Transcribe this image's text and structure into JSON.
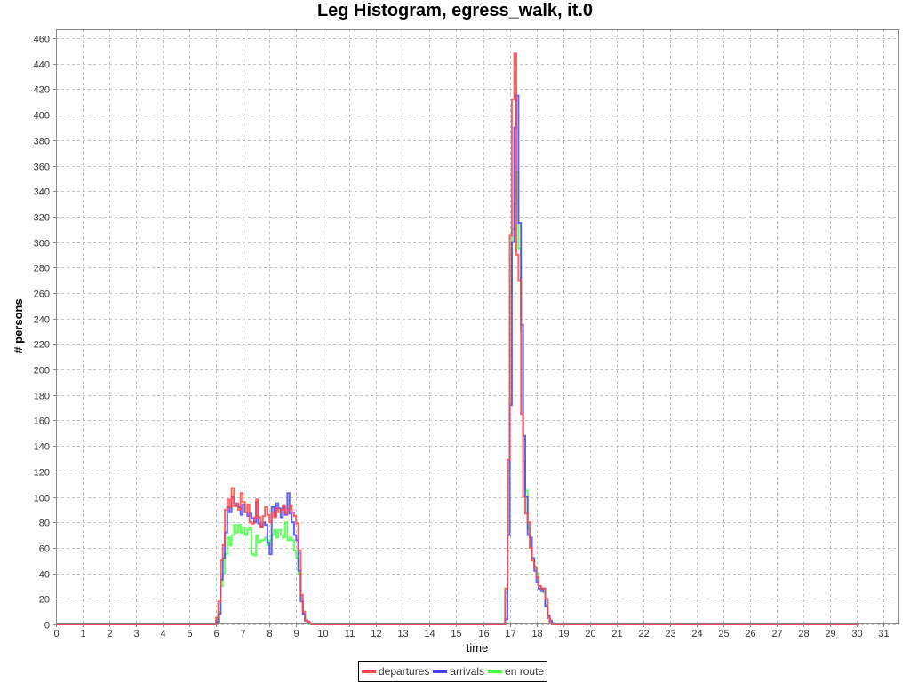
{
  "chart_data": {
    "type": "line",
    "title": "Leg Histogram, egress_walk, it.0",
    "xlabel": "time",
    "ylabel": "# persons",
    "xlim": [
      0,
      31.6
    ],
    "ylim": [
      0,
      467
    ],
    "x_ticks": [
      0,
      1,
      2,
      3,
      4,
      5,
      6,
      7,
      8,
      9,
      10,
      11,
      12,
      13,
      14,
      15,
      16,
      17,
      18,
      19,
      20,
      21,
      22,
      23,
      24,
      25,
      26,
      27,
      28,
      29,
      30,
      31
    ],
    "y_ticks": [
      0,
      20,
      40,
      60,
      80,
      100,
      120,
      140,
      160,
      180,
      200,
      220,
      240,
      260,
      280,
      300,
      320,
      340,
      360,
      380,
      400,
      420,
      440,
      460
    ],
    "grid": true,
    "legend_position": "bottom",
    "bin_width_hours": 0.0833,
    "series": [
      {
        "name": "departures",
        "color": "#ff4444",
        "points": [
          [
            0,
            0
          ],
          [
            6.0,
            0
          ],
          [
            6.0,
            5
          ],
          [
            6.08,
            18
          ],
          [
            6.17,
            50
          ],
          [
            6.25,
            62
          ],
          [
            6.33,
            90
          ],
          [
            6.42,
            98
          ],
          [
            6.5,
            92
          ],
          [
            6.58,
            107
          ],
          [
            6.67,
            93
          ],
          [
            6.75,
            95
          ],
          [
            6.83,
            90
          ],
          [
            6.92,
            103
          ],
          [
            7.0,
            96
          ],
          [
            7.08,
            88
          ],
          [
            7.17,
            94
          ],
          [
            7.25,
            80
          ],
          [
            7.33,
            79
          ],
          [
            7.42,
            84
          ],
          [
            7.5,
            98
          ],
          [
            7.58,
            84
          ],
          [
            7.67,
            76
          ],
          [
            7.75,
            85
          ],
          [
            7.83,
            92
          ],
          [
            7.92,
            86
          ],
          [
            8.0,
            80
          ],
          [
            8.08,
            88
          ],
          [
            8.17,
            84
          ],
          [
            8.25,
            91
          ],
          [
            8.33,
            88
          ],
          [
            8.42,
            90
          ],
          [
            8.5,
            93
          ],
          [
            8.58,
            87
          ],
          [
            8.67,
            90
          ],
          [
            8.75,
            93
          ],
          [
            8.83,
            88
          ],
          [
            8.92,
            85
          ],
          [
            9.0,
            79
          ],
          [
            9.08,
            58
          ],
          [
            9.17,
            23
          ],
          [
            9.25,
            10
          ],
          [
            9.33,
            3
          ],
          [
            9.42,
            2
          ],
          [
            9.5,
            1
          ],
          [
            9.58,
            0
          ],
          [
            16.83,
            0
          ],
          [
            16.83,
            28
          ],
          [
            16.92,
            129
          ],
          [
            17.0,
            305
          ],
          [
            17.08,
            412
          ],
          [
            17.17,
            448
          ],
          [
            17.25,
            290
          ],
          [
            17.33,
            270
          ],
          [
            17.42,
            165
          ],
          [
            17.5,
            100
          ],
          [
            17.58,
            87
          ],
          [
            17.67,
            80
          ],
          [
            17.75,
            60
          ],
          [
            17.83,
            50
          ],
          [
            17.92,
            45
          ],
          [
            18.0,
            37
          ],
          [
            18.08,
            30
          ],
          [
            18.17,
            28
          ],
          [
            18.25,
            28
          ],
          [
            18.33,
            20
          ],
          [
            18.42,
            5
          ],
          [
            18.5,
            1
          ],
          [
            18.58,
            0
          ],
          [
            30.1,
            0
          ]
        ]
      },
      {
        "name": "arrivals",
        "color": "#4444ff",
        "points": [
          [
            0,
            0
          ],
          [
            6.0,
            0
          ],
          [
            6.0,
            2
          ],
          [
            6.08,
            8
          ],
          [
            6.17,
            35
          ],
          [
            6.25,
            52
          ],
          [
            6.33,
            72
          ],
          [
            6.42,
            92
          ],
          [
            6.5,
            88
          ],
          [
            6.58,
            100
          ],
          [
            6.67,
            95
          ],
          [
            6.75,
            93
          ],
          [
            6.83,
            92
          ],
          [
            6.92,
            86
          ],
          [
            7.0,
            94
          ],
          [
            7.08,
            88
          ],
          [
            7.17,
            85
          ],
          [
            7.25,
            87
          ],
          [
            7.33,
            83
          ],
          [
            7.42,
            80
          ],
          [
            7.5,
            96
          ],
          [
            7.58,
            79
          ],
          [
            7.67,
            77
          ],
          [
            7.75,
            80
          ],
          [
            7.83,
            78
          ],
          [
            7.92,
            64
          ],
          [
            8.0,
            55
          ],
          [
            8.08,
            92
          ],
          [
            8.17,
            85
          ],
          [
            8.25,
            95
          ],
          [
            8.33,
            91
          ],
          [
            8.42,
            84
          ],
          [
            8.5,
            92
          ],
          [
            8.58,
            86
          ],
          [
            8.67,
            103
          ],
          [
            8.75,
            87
          ],
          [
            8.83,
            80
          ],
          [
            8.92,
            70
          ],
          [
            9.0,
            66
          ],
          [
            9.08,
            42
          ],
          [
            9.17,
            18
          ],
          [
            9.25,
            8
          ],
          [
            9.33,
            3
          ],
          [
            9.42,
            2
          ],
          [
            9.5,
            1
          ],
          [
            9.58,
            0
          ],
          [
            16.83,
            0
          ],
          [
            16.83,
            4
          ],
          [
            16.92,
            70
          ],
          [
            17.0,
            172
          ],
          [
            17.08,
            300
          ],
          [
            17.17,
            390
          ],
          [
            17.25,
            415
          ],
          [
            17.33,
            315
          ],
          [
            17.42,
            235
          ],
          [
            17.5,
            148
          ],
          [
            17.58,
            100
          ],
          [
            17.67,
            70
          ],
          [
            17.75,
            68
          ],
          [
            17.83,
            52
          ],
          [
            17.92,
            42
          ],
          [
            18.0,
            33
          ],
          [
            18.08,
            28
          ],
          [
            18.17,
            26
          ],
          [
            18.25,
            28
          ],
          [
            18.33,
            14
          ],
          [
            18.42,
            7
          ],
          [
            18.5,
            3
          ],
          [
            18.58,
            1
          ],
          [
            18.67,
            0
          ],
          [
            30.1,
            0
          ]
        ]
      },
      {
        "name": "en route",
        "color": "#44ff44",
        "points": [
          [
            0,
            0
          ],
          [
            6.0,
            0
          ],
          [
            6.0,
            3
          ],
          [
            6.08,
            10
          ],
          [
            6.17,
            30
          ],
          [
            6.25,
            40
          ],
          [
            6.33,
            55
          ],
          [
            6.42,
            68
          ],
          [
            6.5,
            62
          ],
          [
            6.58,
            70
          ],
          [
            6.67,
            78
          ],
          [
            6.75,
            72
          ],
          [
            6.83,
            78
          ],
          [
            6.92,
            72
          ],
          [
            7.0,
            76
          ],
          [
            7.08,
            70
          ],
          [
            7.17,
            74
          ],
          [
            7.25,
            76
          ],
          [
            7.33,
            55
          ],
          [
            7.42,
            54
          ],
          [
            7.5,
            70
          ],
          [
            7.58,
            64
          ],
          [
            7.67,
            66
          ],
          [
            7.75,
            66
          ],
          [
            7.83,
            68
          ],
          [
            7.92,
            62
          ],
          [
            8.0,
            66
          ],
          [
            8.08,
            70
          ],
          [
            8.17,
            74
          ],
          [
            8.25,
            68
          ],
          [
            8.33,
            74
          ],
          [
            8.42,
            70
          ],
          [
            8.5,
            68
          ],
          [
            8.58,
            80
          ],
          [
            8.67,
            66
          ],
          [
            8.75,
            68
          ],
          [
            8.83,
            66
          ],
          [
            8.92,
            58
          ],
          [
            9.0,
            52
          ],
          [
            9.08,
            40
          ],
          [
            9.17,
            20
          ],
          [
            9.25,
            8
          ],
          [
            9.33,
            3
          ],
          [
            9.42,
            1
          ],
          [
            9.5,
            0
          ],
          [
            16.83,
            0
          ],
          [
            16.83,
            25
          ],
          [
            16.92,
            120
          ],
          [
            17.0,
            260
          ],
          [
            17.08,
            310
          ],
          [
            17.17,
            330
          ],
          [
            17.25,
            355
          ],
          [
            17.33,
            295
          ],
          [
            17.42,
            230
          ],
          [
            17.5,
            128
          ],
          [
            17.58,
            105
          ],
          [
            17.67,
            75
          ],
          [
            17.75,
            60
          ],
          [
            17.83,
            50
          ],
          [
            17.92,
            45
          ],
          [
            18.0,
            40
          ],
          [
            18.08,
            30
          ],
          [
            18.17,
            28
          ],
          [
            18.25,
            25
          ],
          [
            18.33,
            15
          ],
          [
            18.42,
            5
          ],
          [
            18.5,
            1
          ],
          [
            18.58,
            0
          ],
          [
            30.1,
            0
          ]
        ]
      }
    ]
  }
}
